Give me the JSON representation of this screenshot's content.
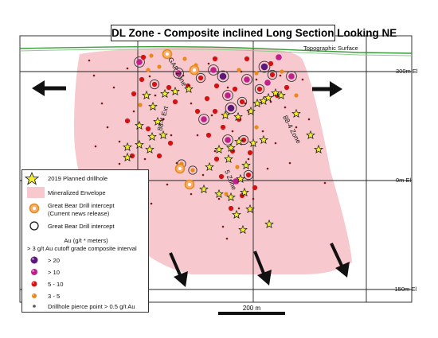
{
  "title": "DL Zone - Composite inclined Long Section Looking NE",
  "topo_label": "Topographic Surface",
  "elevations": [
    "300m El",
    "0m El",
    "-150m El"
  ],
  "zones": [
    "GAP Zone",
    "88-4 Zone",
    "88-4 Ext",
    "5 Zone"
  ],
  "scale_label": "200 m",
  "legend": {
    "planned": "2019 Planned drillhole",
    "envelope": "Mineralized Envelope",
    "gb_current_1": "Great Bear Drill intercept",
    "gb_current_2": "(Current news release)",
    "gb_intercept": "Great Bear Drill intercept",
    "au_head_1": "Au (g/t  * meters)",
    "au_head_2": "> 3 g/t Au cutoff grade composite interval",
    "classes": [
      "> 20",
      "> 10",
      "5 - 10",
      "3 - 5"
    ],
    "pierce": "Drillhole pierce point > 0.5 g/t Au"
  },
  "colors": {
    "envelope": "#f8c8cf",
    "topo": "#3a9b3a",
    "star": "#f2ee2a",
    "gt20": "#5b1a7a",
    "gt10": "#c0208a",
    "g5_10": "#d41212",
    "g3_5": "#e8891a",
    "pierce": "#7a1a1a"
  }
}
